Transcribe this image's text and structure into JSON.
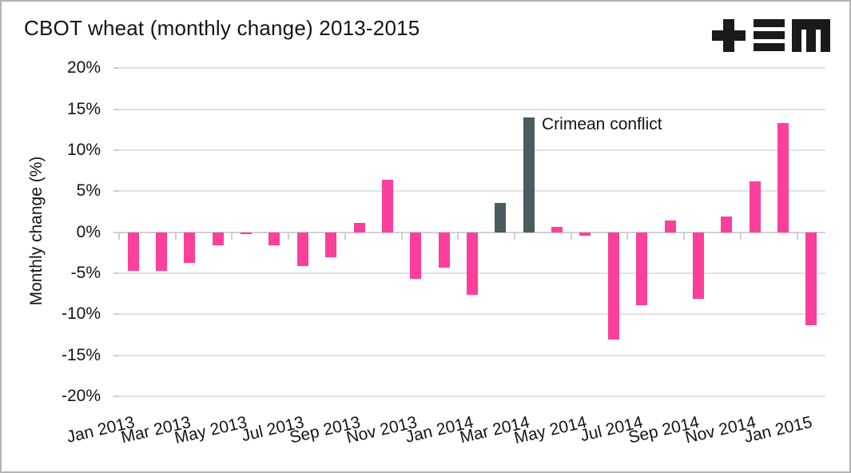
{
  "header": {
    "title": "CBOT wheat (monthly change) 2013-2015",
    "logo": "plus-triple-bar-m-logo"
  },
  "chart_data": {
    "type": "bar",
    "title": "CBOT wheat (monthly change) 2013-2015",
    "xlabel": "",
    "ylabel": "Monthly change (%)",
    "ylim": [
      -20,
      20
    ],
    "yticks": [
      20,
      15,
      10,
      5,
      0,
      -5,
      -10,
      -15,
      -20
    ],
    "ytick_labels": [
      "20%",
      "15%",
      "10%",
      "5%",
      "0%",
      "-5%",
      "-10%",
      "-15%",
      "-20%"
    ],
    "grid": "horizontal",
    "legend_position": "none",
    "categories": [
      "Jan 2013",
      "Feb 2013",
      "Mar 2013",
      "Apr 2013",
      "May 2013",
      "Jun 2013",
      "Jul 2013",
      "Aug 2013",
      "Sep 2013",
      "Oct 2013",
      "Nov 2013",
      "Dec 2013",
      "Jan 2014",
      "Feb 2014",
      "Mar 2014",
      "Apr 2014",
      "May 2014",
      "Jun 2014",
      "Jul 2014",
      "Aug 2014",
      "Sep 2014",
      "Oct 2014",
      "Nov 2014",
      "Dec 2014",
      "Jan 2015"
    ],
    "values": [
      -4.7,
      -4.7,
      -3.7,
      -1.6,
      -0.2,
      -1.6,
      -4.1,
      -3.0,
      1.1,
      6.4,
      -5.7,
      -4.3,
      -7.6,
      3.6,
      14.0,
      0.7,
      -0.4,
      -13.1,
      -8.9,
      1.4,
      -8.1,
      1.9,
      6.2,
      13.3,
      -11.3
    ],
    "highlight_categories": [
      "Feb 2014",
      "Mar 2014"
    ],
    "xtick_labels": [
      "Jan 2013",
      "Mar 2013",
      "May 2013",
      "Jul 2013",
      "Sep 2013",
      "Nov 2013",
      "Jan 2014",
      "Mar 2014",
      "May 2014",
      "Jul 2014",
      "Sep 2014",
      "Nov 2014",
      "Jan 2015"
    ],
    "annotation": {
      "text": "Crimean conflict",
      "target": "Mar 2014"
    },
    "colors": {
      "bar": "#fb3f9b",
      "highlight_bar": "#4a5c60",
      "gridline": "#e2e2e2",
      "zero_line": "#d2d2d2",
      "text": "#141414"
    }
  }
}
